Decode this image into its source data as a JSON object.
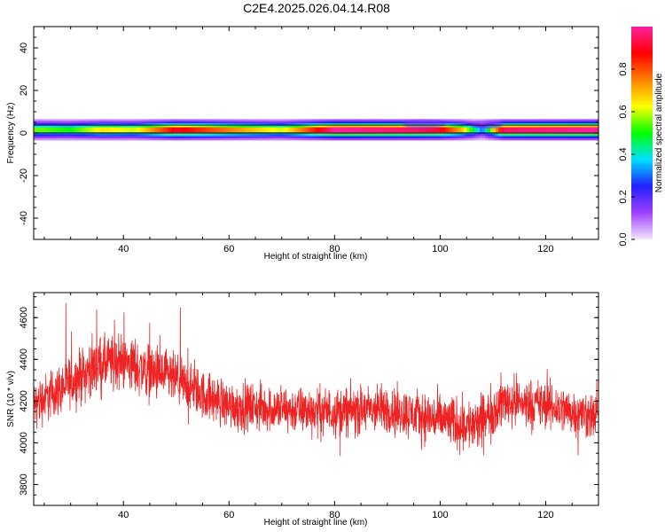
{
  "title": "C2E4.2025.026.04.14.R08",
  "colors": {
    "snr_line": "#ee2222",
    "frame": "#000000"
  },
  "chart_data": [
    {
      "type": "heatmap",
      "xlabel": "Height of straight line (km)",
      "ylabel": "Frequency (Hz)",
      "xlim": [
        23,
        130
      ],
      "ylim": [
        -50,
        50
      ],
      "x_ticks": [
        40,
        60,
        80,
        100,
        120
      ],
      "y_ticks": [
        -40,
        -20,
        0,
        20,
        40
      ],
      "band_center_freq": 1.5,
      "amplitude_profile": [
        {
          "x": 24,
          "a": 0.55
        },
        {
          "x": 30,
          "a": 0.5
        },
        {
          "x": 36,
          "a": 0.65
        },
        {
          "x": 42,
          "a": 0.6
        },
        {
          "x": 50,
          "a": 0.9
        },
        {
          "x": 60,
          "a": 0.75
        },
        {
          "x": 70,
          "a": 0.6
        },
        {
          "x": 80,
          "a": 1.0
        },
        {
          "x": 95,
          "a": 0.95
        },
        {
          "x": 100,
          "a": 0.9
        },
        {
          "x": 104,
          "a": 0.7
        },
        {
          "x": 108,
          "a": 0.3
        },
        {
          "x": 112,
          "a": 0.95
        },
        {
          "x": 130,
          "a": 1.0
        }
      ],
      "colorbar": {
        "label": "Normalized spectral amplitude",
        "range": [
          0,
          1
        ],
        "ticks": [
          "0.0",
          "0.2",
          "0.4",
          "0.6",
          "0.8"
        ],
        "stops": [
          "#f4e6ff",
          "#a040ff",
          "#2020ff",
          "#00e0ff",
          "#00ff00",
          "#ffff00",
          "#ff8000",
          "#ff0000",
          "#ff20a0"
        ]
      }
    },
    {
      "type": "line",
      "xlabel": "Height of straight line (km)",
      "ylabel": "SNR (10 * v/v)",
      "xlim": [
        23,
        130
      ],
      "ylim": [
        3700,
        4720
      ],
      "x_ticks": [
        40,
        60,
        80,
        100,
        120
      ],
      "y_ticks": [
        3800,
        4000,
        4200,
        4400,
        4600
      ],
      "series": [
        {
          "envelope": [
            {
              "x": 23,
              "mean": 4180,
              "spread": 170
            },
            {
              "x": 30,
              "mean": 4290,
              "spread": 180
            },
            {
              "x": 35,
              "mean": 4370,
              "spread": 200
            },
            {
              "x": 40,
              "mean": 4390,
              "spread": 190
            },
            {
              "x": 45,
              "mean": 4340,
              "spread": 200
            },
            {
              "x": 50,
              "mean": 4300,
              "spread": 180
            },
            {
              "x": 55,
              "mean": 4230,
              "spread": 170
            },
            {
              "x": 60,
              "mean": 4180,
              "spread": 170
            },
            {
              "x": 70,
              "mean": 4160,
              "spread": 160
            },
            {
              "x": 80,
              "mean": 4150,
              "spread": 170
            },
            {
              "x": 90,
              "mean": 4160,
              "spread": 170
            },
            {
              "x": 100,
              "mean": 4110,
              "spread": 180
            },
            {
              "x": 107,
              "mean": 4080,
              "spread": 190
            },
            {
              "x": 112,
              "mean": 4200,
              "spread": 180
            },
            {
              "x": 120,
              "mean": 4180,
              "spread": 170
            },
            {
              "x": 130,
              "mean": 4120,
              "spread": 160
            }
          ]
        }
      ]
    }
  ]
}
